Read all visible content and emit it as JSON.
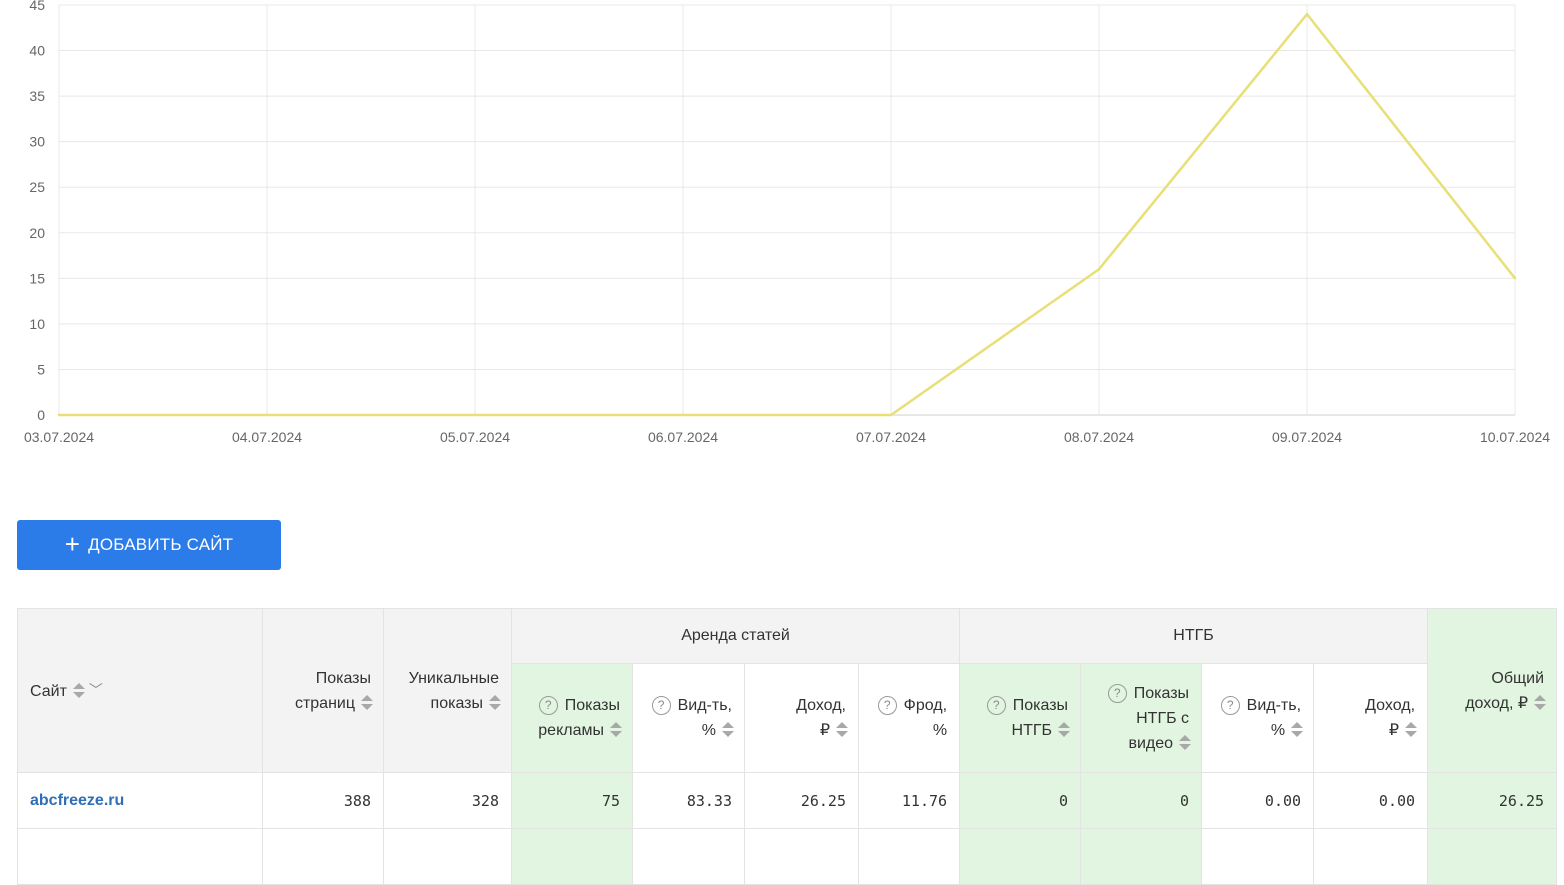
{
  "chart_data": {
    "type": "line",
    "x": [
      "03.07.2024",
      "04.07.2024",
      "05.07.2024",
      "06.07.2024",
      "07.07.2024",
      "08.07.2024",
      "09.07.2024",
      "10.07.2024"
    ],
    "series": [
      {
        "values": [
          0,
          0,
          0,
          0,
          0,
          16,
          44,
          15
        ],
        "color": "#e8df77"
      }
    ],
    "yticks": [
      "0",
      "5",
      "10",
      "15",
      "20",
      "25",
      "30",
      "35",
      "40",
      "45"
    ],
    "ylim": [
      0,
      45
    ],
    "grid": true,
    "title": "",
    "xlabel": "",
    "ylabel": ""
  },
  "add_button": {
    "plus": "+",
    "label": "ДОБАВИТЬ САЙТ"
  },
  "table": {
    "groups": {
      "articles": "Аренда статей",
      "ntgb": "НТГБ"
    },
    "columns": {
      "site": "Сайт",
      "page_views_1": "Показы",
      "page_views_2": "страниц",
      "unique_1": "Уникальные",
      "unique_2": "показы",
      "ad_views_1": "Показы",
      "ad_views_2": "рекламы",
      "viewability_1": "Вид-ть,",
      "viewability_2": "%",
      "income_1": "Доход,",
      "income_2": "₽",
      "fraud_1": "Фрод,",
      "fraud_2": "%",
      "ntgb_views_1": "Показы",
      "ntgb_views_2": "НТГБ",
      "ntgb_video_1": "Показы",
      "ntgb_video_2": "НТГБ с",
      "ntgb_video_3": "видео",
      "ntgb_viewability_1": "Вид-ть,",
      "ntgb_viewability_2": "%",
      "ntgb_income_1": "Доход,",
      "ntgb_income_2": "₽",
      "total_1": "Общий",
      "total_2": "доход, ₽"
    },
    "help_glyph": "?",
    "rows": [
      {
        "site": "abcfreeze.ru",
        "page_views": "388",
        "unique": "328",
        "ad_views": "75",
        "viewability": "83.33",
        "income": "26.25",
        "fraud": "11.76",
        "ntgb_views": "0",
        "ntgb_video": "0",
        "ntgb_viewability": "0.00",
        "ntgb_income": "0.00",
        "total": "26.25"
      }
    ]
  }
}
